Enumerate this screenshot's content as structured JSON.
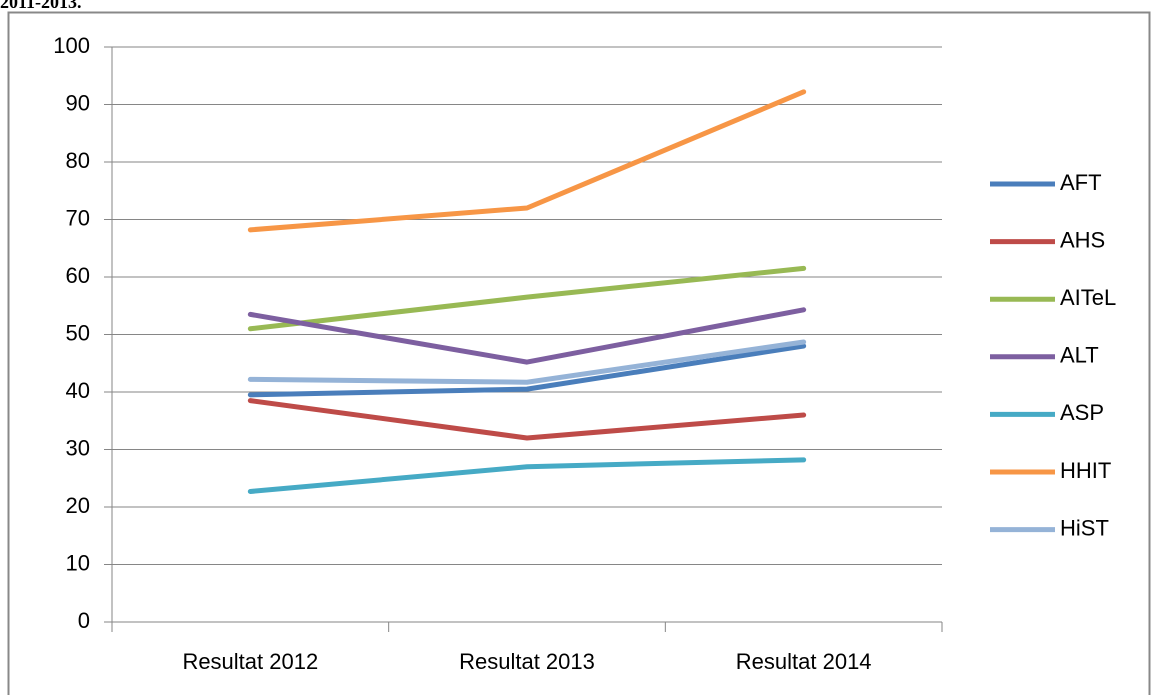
{
  "chart_data": {
    "type": "line",
    "title": "2011-2013.",
    "categories": [
      "Resultat 2012",
      "Resultat 2013",
      "Resultat 2014"
    ],
    "series": [
      {
        "name": "AFT",
        "color": "#4a7ebb",
        "values": [
          39.5,
          40.5,
          48
        ]
      },
      {
        "name": "AHS",
        "color": "#be4b48",
        "values": [
          38.5,
          32,
          36
        ]
      },
      {
        "name": "AITeL",
        "color": "#98b954",
        "values": [
          51,
          56.5,
          61.5
        ]
      },
      {
        "name": "ALT",
        "color": "#7d5fa0",
        "values": [
          53.5,
          45.2,
          54.3
        ]
      },
      {
        "name": "ASP",
        "color": "#46aac5",
        "values": [
          22.7,
          27,
          28.2
        ]
      },
      {
        "name": "HHIT",
        "color": "#f79646",
        "values": [
          68.2,
          72,
          92.2
        ]
      },
      {
        "name": "HiST",
        "color": "#95b3d7",
        "values": [
          42.2,
          41.7,
          48.7
        ]
      }
    ],
    "ylim": [
      0,
      100
    ],
    "yticks": [
      0,
      10,
      20,
      30,
      40,
      50,
      60,
      70,
      80,
      90,
      100
    ],
    "grid": true,
    "legend": "right"
  }
}
